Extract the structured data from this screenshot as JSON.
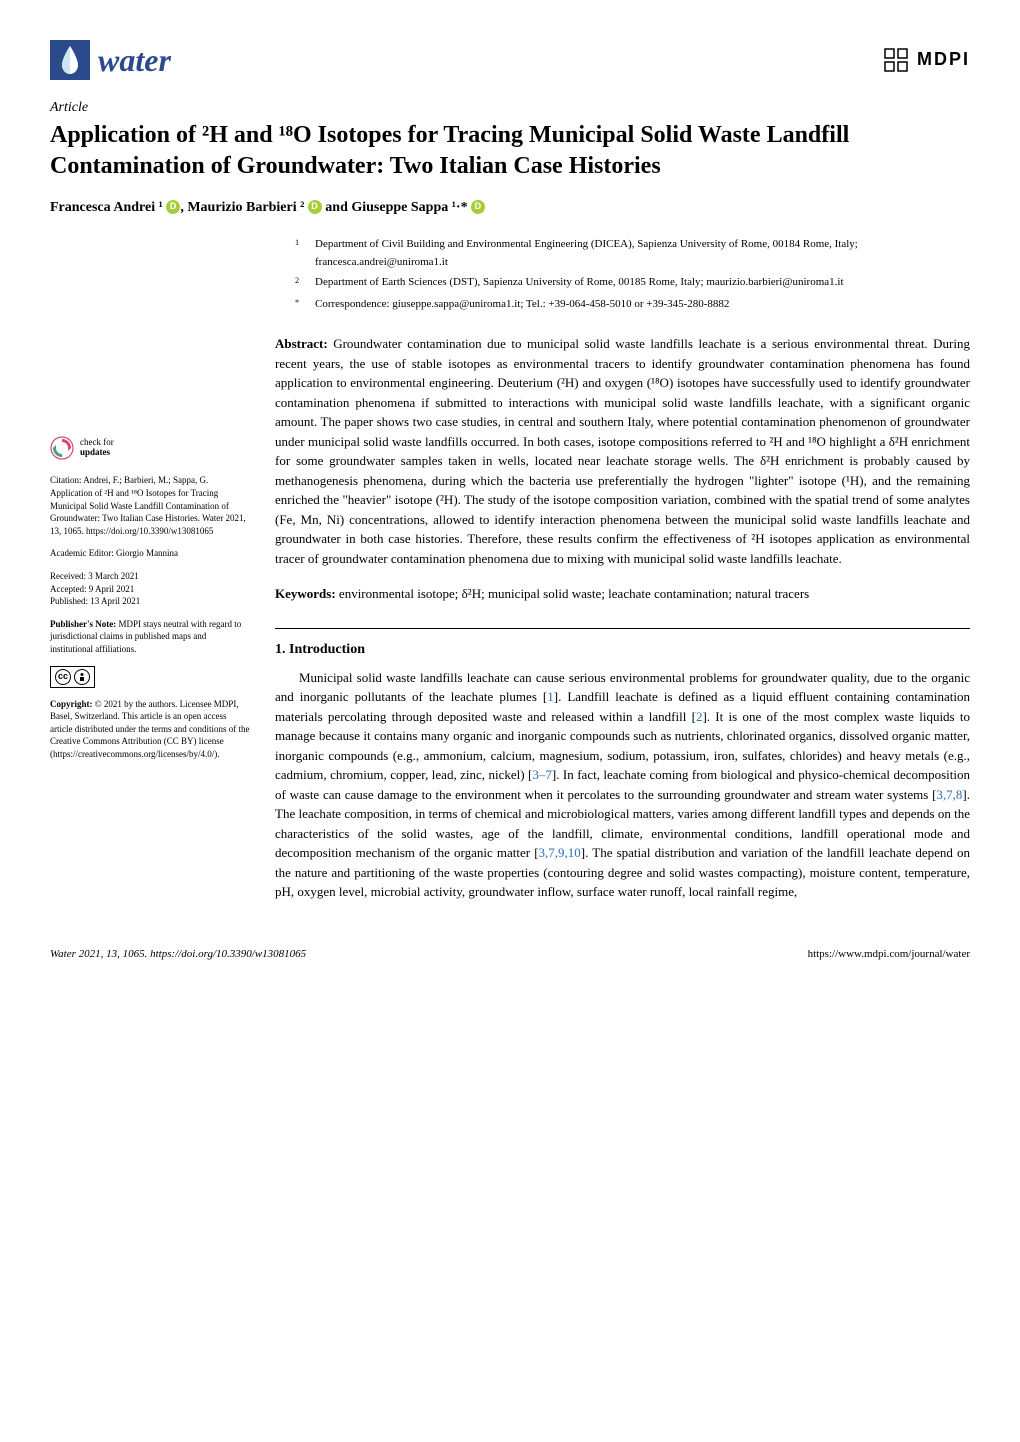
{
  "journal": {
    "name": "water",
    "publisher": "MDPI"
  },
  "article_type": "Article",
  "title": "Application of ²H and ¹⁸O Isotopes for Tracing Municipal Solid Waste Landfill Contamination of Groundwater: Two Italian Case Histories",
  "authors_html": "Francesca Andrei ¹ <span class='orcid'></span>, Maurizio Barbieri ² <span class='orcid'></span> and Giuseppe Sappa ¹·* <span class='orcid'></span>",
  "affiliations": [
    {
      "num": "1",
      "text": "Department of Civil Building and Environmental Engineering (DICEA), Sapienza University of Rome, 00184 Rome, Italy; francesca.andrei@uniroma1.it"
    },
    {
      "num": "2",
      "text": "Department of Earth Sciences (DST), Sapienza University of Rome, 00185 Rome, Italy; maurizio.barbieri@uniroma1.it"
    },
    {
      "num": "*",
      "text": "Correspondence: giuseppe.sappa@uniroma1.it; Tel.: +39-064-458-5010 or +39-345-280-8882"
    }
  ],
  "abstract_label": "Abstract:",
  "abstract": "Groundwater contamination due to municipal solid waste landfills leachate is a serious environmental threat. During recent years, the use of stable isotopes as environmental tracers to identify groundwater contamination phenomena has found application to environmental engineering. Deuterium (²H) and oxygen (¹⁸O) isotopes have successfully used to identify groundwater contamination phenomena if submitted to interactions with municipal solid waste landfills leachate, with a significant organic amount. The paper shows two case studies, in central and southern Italy, where potential contamination phenomenon of groundwater under municipal solid waste landfills occurred. In both cases, isotope compositions referred to ²H and ¹⁸O highlight a δ²H enrichment for some groundwater samples taken in wells, located near leachate storage wells. The δ²H enrichment is probably caused by methanogenesis phenomena, during which the bacteria use preferentially the hydrogen \"lighter\" isotope (¹H), and the remaining enriched the \"heavier\" isotope (²H). The study of the isotope composition variation, combined with the spatial trend of some analytes (Fe, Mn, Ni) concentrations, allowed to identify interaction phenomena between the municipal solid waste landfills leachate and groundwater in both case histories. Therefore, these results confirm the effectiveness of ²H isotopes application as environmental tracer of groundwater contamination phenomena due to mixing with municipal solid waste landfills leachate.",
  "keywords_label": "Keywords:",
  "keywords": "environmental isotope; δ²H; municipal solid waste; leachate contamination; natural tracers",
  "section1_heading": "1. Introduction",
  "section1_body": "Municipal solid waste landfills leachate can cause serious environmental problems for groundwater quality, due to the organic and inorganic pollutants of the leachate plumes [1]. Landfill leachate is defined as a liquid effluent containing contamination materials percolating through deposited waste and released within a landfill [2]. It is one of the most complex waste liquids to manage because it contains many organic and inorganic compounds such as nutrients, chlorinated organics, dissolved organic matter, inorganic compounds (e.g., ammonium, calcium, magnesium, sodium, potassium, iron, sulfates, chlorides) and heavy metals (e.g., cadmium, chromium, copper, lead, zinc, nickel) [3–7]. In fact, leachate coming from biological and physico-chemical decomposition of waste can cause damage to the environment when it percolates to the surrounding groundwater and stream water systems [3,7,8]. The leachate composition, in terms of chemical and microbiological matters, varies among different landfill types and depends on the characteristics of the solid wastes, age of the landfill, climate, environmental conditions, landfill operational mode and decomposition mechanism of the organic matter [3,7,9,10]. The spatial distribution and variation of the landfill leachate depend on the nature and partitioning of the waste properties (contouring degree and solid wastes compacting), moisture content, temperature, pH, oxygen level, microbial activity, groundwater inflow, surface water runoff, local rainfall regime,",
  "sidebar": {
    "check_updates": "check for updates",
    "citation": "Citation: Andrei, F.; Barbieri, M.; Sappa, G. Application of ²H and ¹⁸O Isotopes for Tracing Municipal Solid Waste Landfill Contamination of Groundwater: Two Italian Case Histories. Water 2021, 13, 1065. https://doi.org/10.3390/w13081065",
    "editor": "Academic Editor: Giorgio Mannina",
    "received": "Received: 3 March 2021",
    "accepted": "Accepted: 9 April 2021",
    "published": "Published: 13 April 2021",
    "publishers_note": "Publisher's Note: MDPI stays neutral with regard to jurisdictional claims in published maps and institutional affiliations.",
    "copyright": "Copyright: © 2021 by the authors. Licensee MDPI, Basel, Switzerland. This article is an open access article distributed under the terms and conditions of the Creative Commons Attribution (CC BY) license (https://creativecommons.org/licenses/by/4.0/)."
  },
  "footer": {
    "left": "Water 2021, 13, 1065. https://doi.org/10.3390/w13081065",
    "right": "https://www.mdpi.com/journal/water"
  },
  "colors": {
    "journal_blue": "#2b4a8c",
    "link_blue": "#2b6fb5",
    "orcid_green": "#a6ce39",
    "check_pink": "#d4476f"
  }
}
